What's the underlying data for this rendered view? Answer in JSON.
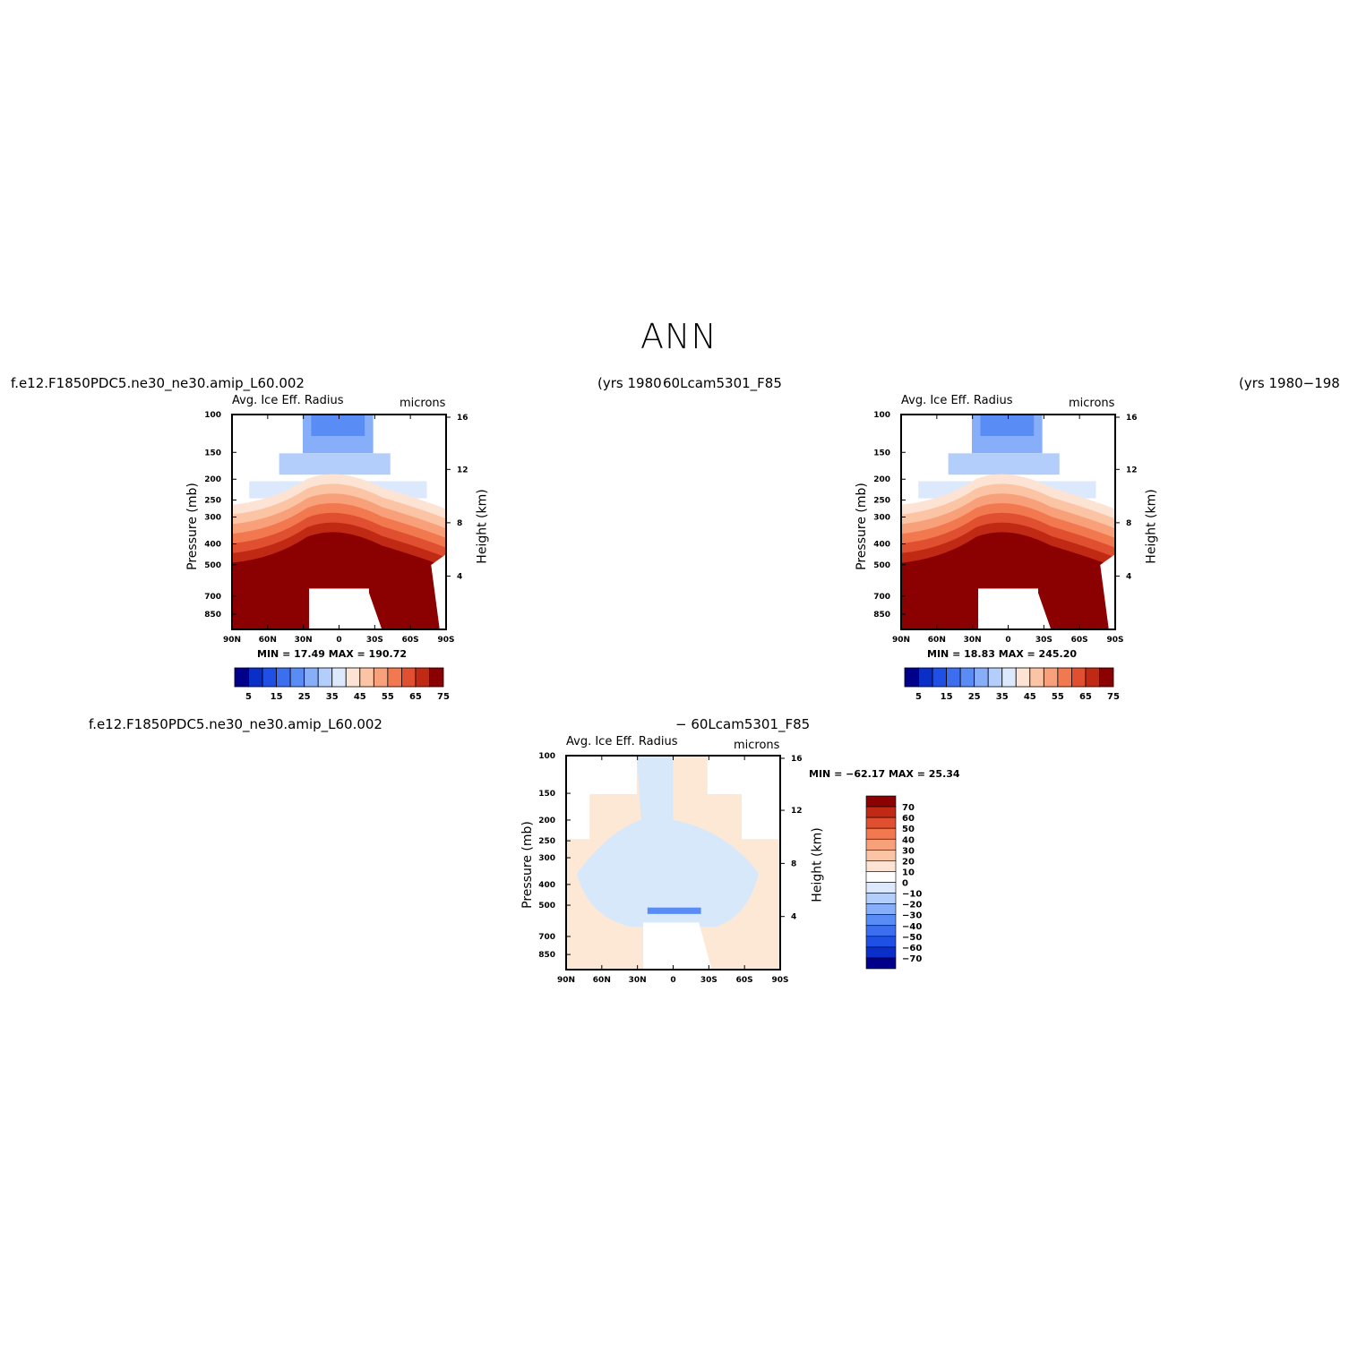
{
  "page": {
    "title": "ANN"
  },
  "labels": {
    "case_left": "f.e12.F1850PDC5.ne30_ne30.amip_L60.002",
    "yrs_left": "(yrs 1980",
    "case_right": "60Lcam5301_F85",
    "yrs_right": "(yrs 1980−198",
    "case_diff_left": "f.e12.F1850PDC5.ne30_ne30.amip_L60.002",
    "case_diff_right": "− 60Lcam5301_F85"
  },
  "panels": [
    {
      "id": "panel-1",
      "left_title": "Avg. Ice Eff. Radius",
      "right_title": "microns",
      "ylabel_left": "Pressure (mb)",
      "ylabel_right": "Height (km)",
      "minmax": "MIN =   17.49   MAX =  190.72"
    },
    {
      "id": "panel-2",
      "left_title": "Avg. Ice Eff. Radius",
      "right_title": "microns",
      "ylabel_left": "Pressure (mb)",
      "ylabel_right": "Height (km)",
      "minmax": "MIN =   18.83   MAX =  245.20"
    },
    {
      "id": "panel-3",
      "left_title": "Avg. Ice Eff. Radius",
      "right_title": "microns",
      "ylabel_left": "Pressure (mb)",
      "ylabel_right": "Height (km)",
      "minmax": "MIN = −62.17   MAX =   25.34"
    }
  ],
  "chart_data": [
    {
      "type": "heatmap",
      "title": "Avg. Ice Eff. Radius",
      "units": "microns",
      "xlabel": "",
      "ylabel": "Pressure (mb)",
      "ylabel_right": "Height (km)",
      "x_ticks": [
        "90N",
        "60N",
        "30N",
        "0",
        "30S",
        "60S",
        "90S"
      ],
      "y_ticks": [
        100,
        150,
        200,
        250,
        300,
        400,
        500,
        700,
        850
      ],
      "y_right_ticks": [
        16,
        12,
        8,
        4
      ],
      "levels": [
        5,
        10,
        15,
        20,
        25,
        30,
        35,
        40,
        45,
        50,
        55,
        60,
        65,
        70,
        75
      ],
      "colorbar_labels": [
        "5",
        "15",
        "25",
        "35",
        "45",
        "55",
        "65",
        "75"
      ],
      "min": 17.49,
      "max": 190.72
    },
    {
      "type": "heatmap",
      "title": "Avg. Ice Eff. Radius",
      "units": "microns",
      "xlabel": "",
      "ylabel": "Pressure (mb)",
      "ylabel_right": "Height (km)",
      "x_ticks": [
        "90N",
        "60N",
        "30N",
        "0",
        "30S",
        "60S",
        "90S"
      ],
      "y_ticks": [
        100,
        150,
        200,
        250,
        300,
        400,
        500,
        700,
        850
      ],
      "y_right_ticks": [
        16,
        12,
        8,
        4
      ],
      "levels": [
        5,
        10,
        15,
        20,
        25,
        30,
        35,
        40,
        45,
        50,
        55,
        60,
        65,
        70,
        75
      ],
      "colorbar_labels": [
        "5",
        "15",
        "25",
        "35",
        "45",
        "55",
        "65",
        "75"
      ],
      "min": 18.83,
      "max": 245.2
    },
    {
      "type": "heatmap",
      "title": "Avg. Ice Eff. Radius",
      "units": "microns",
      "xlabel": "",
      "ylabel": "Pressure (mb)",
      "ylabel_right": "Height (km)",
      "x_ticks": [
        "90N",
        "60N",
        "30N",
        "0",
        "30S",
        "60S",
        "90S"
      ],
      "y_ticks": [
        100,
        150,
        200,
        250,
        300,
        400,
        500,
        700,
        850
      ],
      "y_right_ticks": [
        16,
        12,
        8,
        4
      ],
      "levels": [
        70,
        60,
        50,
        40,
        30,
        20,
        10,
        0,
        -10,
        -20,
        -30,
        -40,
        -50,
        -60,
        -70
      ],
      "colorbar_labels": [
        "70",
        "60",
        "50",
        "40",
        "30",
        "20",
        "10",
        "0",
        "−10",
        "−20",
        "−30",
        "−40",
        "−50",
        "−60",
        "−70"
      ],
      "min": -62.17,
      "max": 25.34
    }
  ],
  "colors": {
    "scale_abs": [
      "#00008b",
      "#0a2fc8",
      "#1e50e6",
      "#3c6ef0",
      "#5a8cf5",
      "#87aef8",
      "#b4cefb",
      "#dce9fd",
      "#fde3d3",
      "#fbc4a4",
      "#f8a07a",
      "#f27850",
      "#e05030",
      "#c02a14",
      "#8b0000"
    ],
    "scale_diff": [
      "#8b0000",
      "#c02a14",
      "#e05030",
      "#f27850",
      "#f8a07a",
      "#fbc4a4",
      "#fde3d3",
      "#ffffff",
      "#dce9fd",
      "#b4cefb",
      "#87aef8",
      "#5a8cf5",
      "#3c6ef0",
      "#1e50e6",
      "#0a2fc8",
      "#00008b"
    ],
    "diff_tan": "#fde8d6",
    "diff_blue": "#d8e8fb"
  }
}
